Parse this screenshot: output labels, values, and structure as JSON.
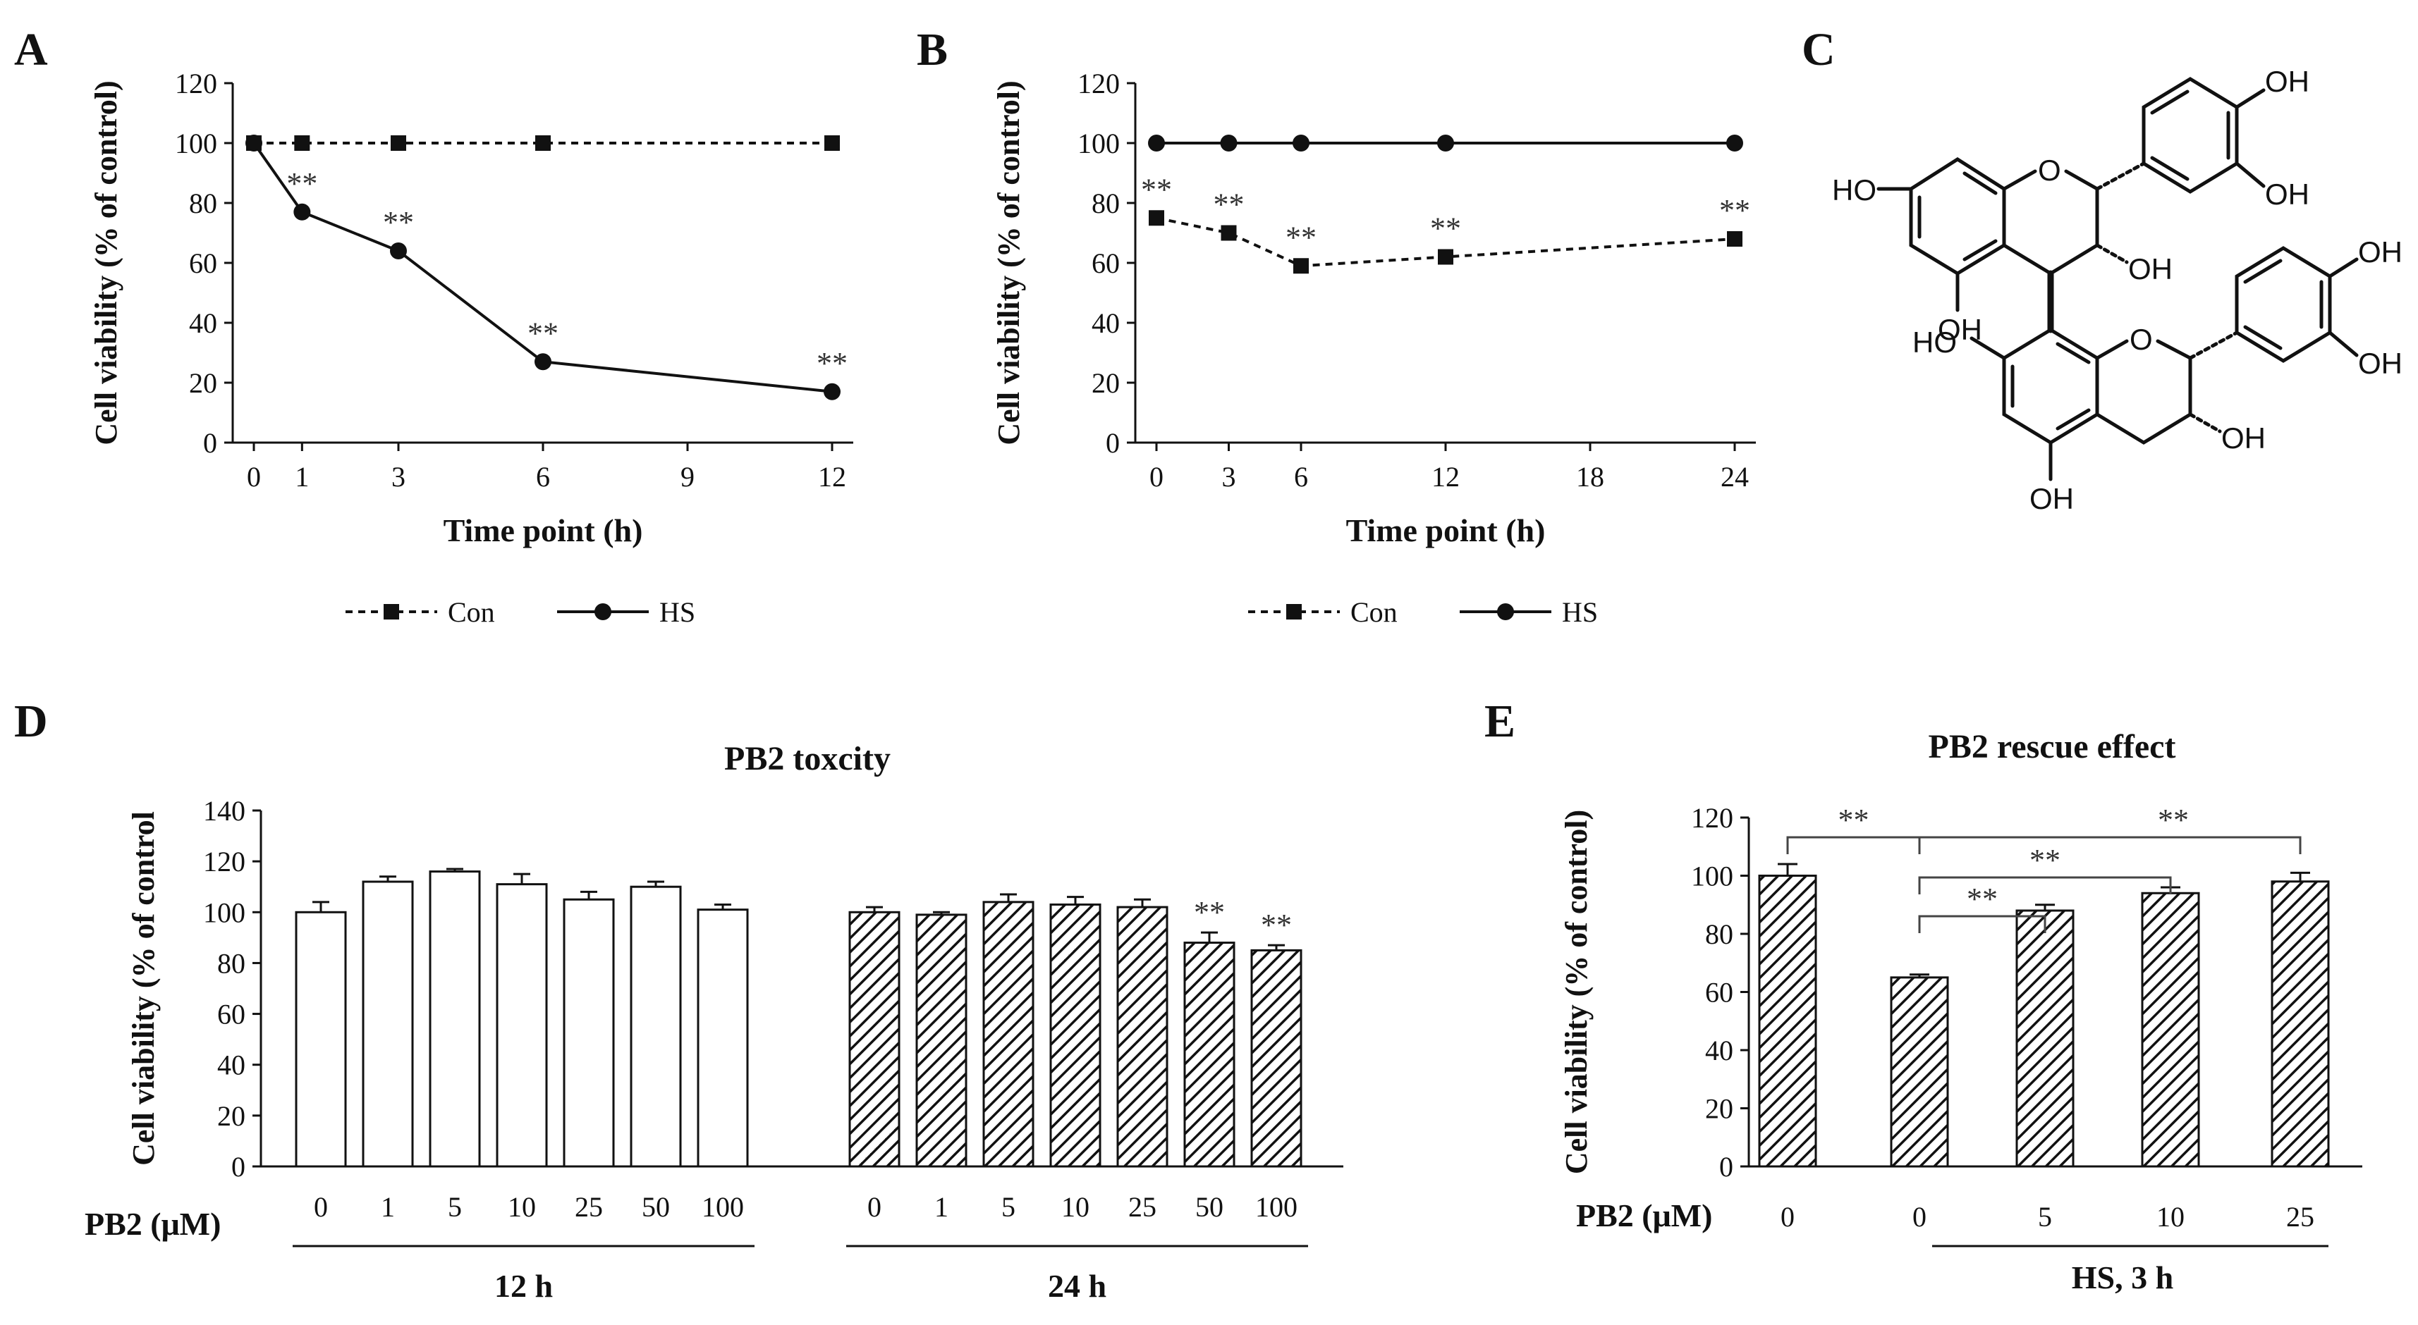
{
  "panels": {
    "A": "A",
    "B": "B",
    "C": "C",
    "D": "D",
    "E": "E"
  },
  "chart_data": [
    {
      "panel": "A",
      "type": "line",
      "title": "",
      "xlabel": "Time point (h)",
      "ylabel": "Cell viability (% of control)",
      "xlim": [
        0,
        12
      ],
      "ylim": [
        0,
        120
      ],
      "xticks": [
        0,
        1,
        3,
        6,
        9,
        12
      ],
      "yticks": [
        0,
        20,
        40,
        60,
        80,
        100,
        120
      ],
      "legend": [
        "Con",
        "HS"
      ],
      "series": [
        {
          "name": "Con",
          "style": "dashed",
          "marker": "square",
          "x": [
            0,
            1,
            3,
            6,
            12
          ],
          "values": [
            100,
            100,
            100,
            100,
            100
          ]
        },
        {
          "name": "HS",
          "style": "solid",
          "marker": "circle",
          "x": [
            0,
            1,
            3,
            6,
            12
          ],
          "values": [
            100,
            77,
            64,
            27,
            17
          ]
        }
      ],
      "annotations": [
        {
          "x": 1,
          "y": 77,
          "text": "**"
        },
        {
          "x": 3,
          "y": 64,
          "text": "**"
        },
        {
          "x": 6,
          "y": 27,
          "text": "**"
        },
        {
          "x": 12,
          "y": 17,
          "text": "**"
        }
      ]
    },
    {
      "panel": "B",
      "type": "line",
      "title": "",
      "xlabel": "Time point (h)",
      "ylabel": "Cell viability (% of control)",
      "xlim": [
        0,
        24
      ],
      "ylim": [
        0,
        120
      ],
      "xticks": [
        0,
        3,
        6,
        12,
        18,
        24
      ],
      "yticks": [
        0,
        20,
        40,
        60,
        80,
        100,
        120
      ],
      "legend": [
        "Con",
        "HS"
      ],
      "series": [
        {
          "name": "Con",
          "style": "dashed",
          "marker": "square",
          "x": [
            0,
            3,
            6,
            12,
            24
          ],
          "values": [
            75,
            70,
            59,
            62,
            68
          ]
        },
        {
          "name": "HS",
          "style": "solid",
          "marker": "circle",
          "x": [
            0,
            3,
            6,
            12,
            24
          ],
          "values": [
            100,
            100,
            100,
            100,
            100
          ]
        }
      ],
      "annotations": [
        {
          "x": 0,
          "y": 75,
          "text": "**"
        },
        {
          "x": 3,
          "y": 70,
          "text": "**"
        },
        {
          "x": 6,
          "y": 59,
          "text": "**"
        },
        {
          "x": 12,
          "y": 62,
          "text": "**"
        },
        {
          "x": 24,
          "y": 68,
          "text": "**"
        }
      ]
    },
    {
      "panel": "D",
      "type": "bar",
      "title": "PB2 toxcity",
      "ylabel": "Cell viability (% of control",
      "ylim": [
        0,
        140
      ],
      "yticks": [
        0,
        20,
        40,
        60,
        80,
        100,
        120,
        140
      ],
      "xlabel_prefix": "PB2  (μM)",
      "groups": [
        {
          "name": "12 h",
          "fill": "white",
          "categories": [
            "0",
            "1",
            "5",
            "10",
            "25",
            "50",
            "100"
          ],
          "values": [
            100,
            112,
            116,
            111,
            105,
            110,
            101
          ],
          "errors": [
            4,
            2,
            1,
            4,
            3,
            2,
            2
          ],
          "sig": [
            "",
            "",
            "",
            "",
            "",
            "",
            ""
          ]
        },
        {
          "name": "24 h",
          "fill": "hatched",
          "categories": [
            "0",
            "1",
            "5",
            "10",
            "25",
            "50",
            "100"
          ],
          "values": [
            100,
            99,
            104,
            103,
            102,
            88,
            85
          ],
          "errors": [
            2,
            1,
            3,
            3,
            3,
            4,
            2
          ],
          "sig": [
            "",
            "",
            "",
            "",
            "",
            "**",
            "**"
          ]
        }
      ]
    },
    {
      "panel": "E",
      "type": "bar",
      "title": "PB2 rescue effect",
      "ylabel": "Cell viability (% of control)",
      "ylim": [
        0,
        120
      ],
      "yticks": [
        0,
        20,
        40,
        60,
        80,
        100,
        120
      ],
      "xlabel_prefix": "PB2 (μM)",
      "categories": [
        "0",
        "0",
        "5",
        "10",
        "25"
      ],
      "values": [
        100,
        65,
        88,
        94,
        98
      ],
      "errors": [
        4,
        1,
        2,
        2,
        3
      ],
      "group_label": "HS, 3 h",
      "brackets": [
        {
          "from": 0,
          "to": 1,
          "text": "**"
        },
        {
          "from": 1,
          "to": 4,
          "text": "**"
        },
        {
          "from": 1,
          "to": 3,
          "text": "**"
        },
        {
          "from": 1,
          "to": 2,
          "text": "**"
        }
      ]
    }
  ],
  "structure": {
    "labels": [
      "HO",
      "O",
      "OH",
      "OH",
      "OH",
      "OH",
      "HO",
      "O",
      "OH",
      "OH",
      "OH",
      "OH"
    ]
  }
}
